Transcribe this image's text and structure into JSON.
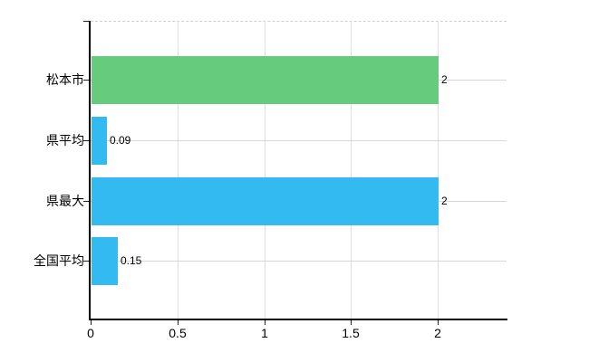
{
  "chart_data": {
    "type": "bar",
    "orientation": "horizontal",
    "title": "",
    "xlabel": "",
    "ylabel": "",
    "categories": [
      "松本市",
      "県平均",
      "県最大",
      "全国平均"
    ],
    "values": [
      2,
      0.09,
      2,
      0.15
    ],
    "value_labels": [
      "2",
      "0.09",
      "2",
      "0.15"
    ],
    "bar_colors": [
      "#66cb7d",
      "#33baf0",
      "#33baf0",
      "#33baf0"
    ],
    "x_ticks": [
      0,
      0.5,
      1,
      1.5,
      2
    ],
    "x_tick_labels": [
      "0",
      "0.5",
      "1",
      "1.5",
      "2"
    ],
    "xlim": [
      0,
      2.4
    ],
    "grid": true,
    "legend": false
  },
  "colors": {
    "green_bar": "#66cb7d",
    "blue_bar": "#33baf0",
    "axis": "#000000",
    "vertical_gridline": "#dedede",
    "horizontal_gridline": "#d3dad3",
    "top_border_dashed": "#cfcfcf",
    "text": "#000000",
    "background": "#ffffff"
  }
}
